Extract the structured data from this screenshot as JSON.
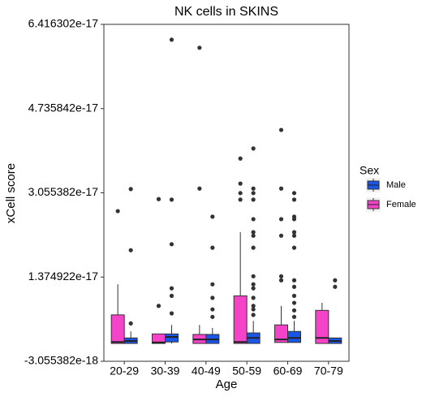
{
  "chart_data": {
    "type": "boxplot",
    "title": "NK cells in SKINS",
    "x_label": "Age",
    "y_label": "xCell score",
    "categories": [
      "20-29",
      "30-39",
      "40-49",
      "50-59",
      "60-69",
      "70-79"
    ],
    "ylim": [
      -3.055382e-18,
      6.416302e-17
    ],
    "yticks": [
      -3.055382e-18,
      1.374922e-17,
      3.055382e-17,
      4.735842e-17,
      6.416302e-17
    ],
    "grid": false,
    "legend_title": "Sex",
    "legend_position": "right",
    "series": [
      {
        "name": "Male",
        "color": "#1a56e8",
        "boxes": [
          {
            "min": 5e-19,
            "q1": 5e-19,
            "median": 1e-18,
            "q3": 1.6e-18,
            "max": 2.9e-18,
            "outliers": [
              4.5e-18,
              1.91e-17,
              3.13e-17
            ]
          },
          {
            "min": 5e-19,
            "q1": 8e-19,
            "median": 1.8e-18,
            "q3": 2.4e-18,
            "max": 4.2e-18,
            "outliers": [
              6.5e-18,
              1e-17,
              1.15e-17,
              2.03e-17,
              2.92e-17,
              6.11e-17
            ]
          },
          {
            "min": 5e-19,
            "q1": 5e-19,
            "median": 1.3e-18,
            "q3": 2.3e-18,
            "max": 3.6e-18,
            "outliers": [
              5.8e-18,
              7.3e-18,
              9.6e-18,
              1.23e-17,
              1.96e-17,
              2.58e-17
            ]
          },
          {
            "min": 5e-19,
            "q1": 5e-19,
            "median": 1.6e-18,
            "q3": 2.6e-18,
            "max": 5e-18,
            "outliers": [
              6.2e-18,
              7.3e-18,
              8e-18,
              9.6e-18,
              1.15e-17,
              1.23e-17,
              1.39e-17,
              1.96e-17,
              2.2e-17,
              2.27e-17,
              2.53e-17,
              2.92e-17,
              3.05e-17,
              3.14e-17,
              3.94e-17
            ]
          },
          {
            "min": 7e-19,
            "q1": 7e-19,
            "median": 1.6e-18,
            "q3": 2.9e-18,
            "max": 5e-18,
            "outliers": [
              5.8e-18,
              7.1e-18,
              8.6e-18,
              1e-17,
              1.18e-17,
              1.31e-17,
              1.96e-17,
              2.2e-17,
              2.27e-17,
              2.53e-17,
              2.58e-17,
              2.92e-17,
              3.05e-17
            ]
          },
          {
            "min": 5e-19,
            "q1": 5e-19,
            "median": 1e-18,
            "q3": 1.6e-18,
            "max": 1.6e-18,
            "outliers": [
              1.18e-17,
              1.31e-17
            ]
          }
        ]
      },
      {
        "name": "Female",
        "color": "#f543c9",
        "boxes": [
          {
            "min": 5e-19,
            "q1": 5e-19,
            "median": 8e-19,
            "q3": 6.2e-18,
            "max": 1.23e-17,
            "outliers": [
              2.69e-17
            ]
          },
          {
            "min": 5e-19,
            "q1": 5e-19,
            "median": 7e-19,
            "q3": 2.4e-18,
            "max": 2.4e-18,
            "outliers": [
              8e-18,
              2.93e-17
            ]
          },
          {
            "min": 5e-19,
            "q1": 5e-19,
            "median": 1.3e-18,
            "q3": 2.3e-18,
            "max": 4.2e-18,
            "outliers": [
              3.14e-17,
              5.95e-17
            ]
          },
          {
            "min": 5e-19,
            "q1": 5e-19,
            "median": 8e-19,
            "q3": 1e-17,
            "max": 2.27e-17,
            "outliers": [
              2.92e-17,
              3.05e-17,
              3.24e-17,
              3.74e-17
            ]
          },
          {
            "min": 7e-19,
            "q1": 7e-19,
            "median": 1.3e-18,
            "q3": 4.2e-18,
            "max": 8e-18,
            "outliers": [
              1.31e-17,
              1.39e-17,
              2.2e-17,
              2.53e-17,
              3.14e-17,
              4.31e-17
            ]
          },
          {
            "min": 5e-19,
            "q1": 5e-19,
            "median": 1.6e-18,
            "q3": 7.1e-18,
            "max": 8.6e-18,
            "outliers": []
          }
        ]
      }
    ]
  }
}
